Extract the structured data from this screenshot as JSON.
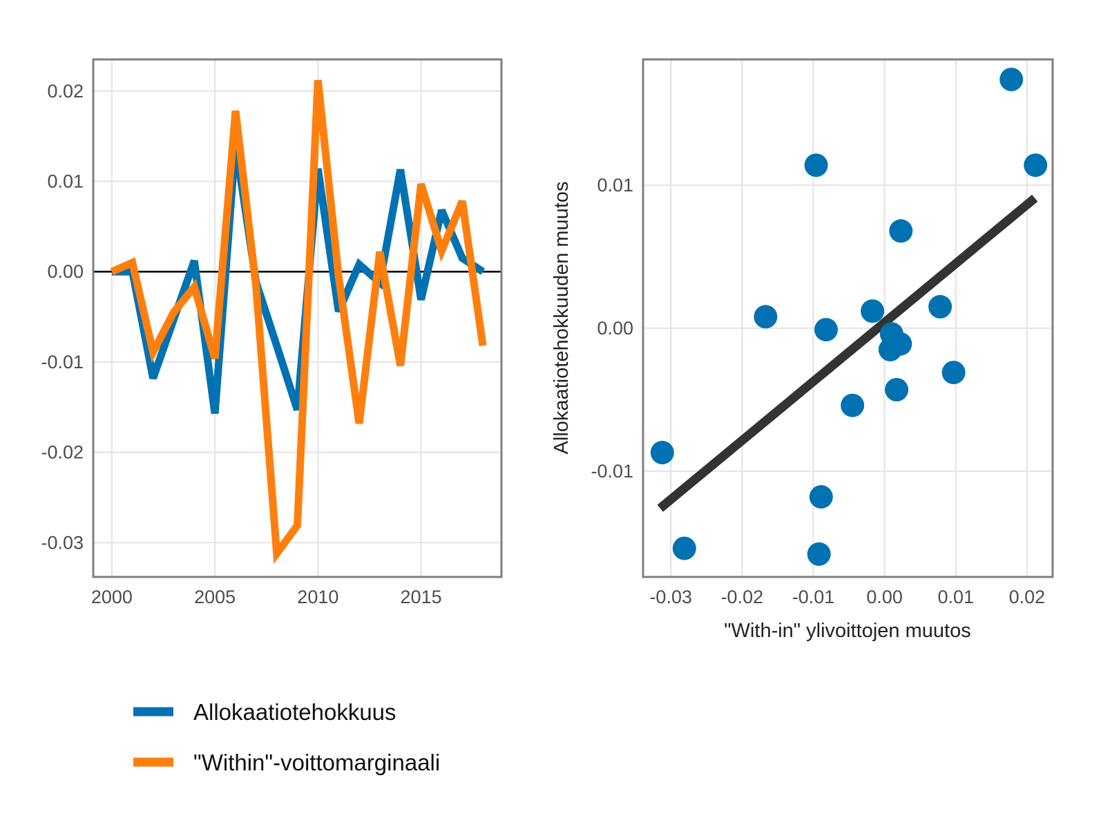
{
  "colors": {
    "allokaatio": "#0072B2",
    "within": "#FF7F0E",
    "fit_line": "#333333",
    "zero_line": "#000000",
    "grid": "#e5e5e5",
    "panel_border": "#7f7f7f"
  },
  "legend": {
    "items": [
      {
        "label": "Allokaatiotehokkuus",
        "color": "#0072B2"
      },
      {
        "label": "\"Within\"-voittomarginaali",
        "color": "#FF7F0E"
      }
    ]
  },
  "chart_data": [
    {
      "type": "line",
      "x": [
        2000,
        2001,
        2002,
        2003,
        2004,
        2005,
        2006,
        2007,
        2008,
        2009,
        2010,
        2011,
        2012,
        2013,
        2014,
        2015,
        2016,
        2017,
        2018
      ],
      "series": [
        {
          "name": "Allokaatiotehokkuus",
          "values": [
            0.0,
            0.0,
            -0.0118,
            -0.0053,
            0.0012,
            -0.0157,
            0.0142,
            -0.0012,
            -0.0082,
            -0.0153,
            0.0114,
            -0.0044,
            0.0008,
            -0.0012,
            0.0113,
            -0.0031,
            0.0068,
            0.0015,
            0.0
          ]
        },
        {
          "name": "\"Within\"-voittomarginaali",
          "values": [
            0.0,
            0.001,
            -0.0089,
            -0.0045,
            -0.0017,
            -0.0096,
            0.0178,
            -0.0017,
            -0.0312,
            -0.0281,
            0.0212,
            -0.0005,
            -0.0168,
            0.0022,
            -0.0104,
            0.0097,
            0.0023,
            0.0078,
            -0.0082
          ]
        }
      ],
      "xticks": [
        2000,
        2005,
        2010,
        2015
      ],
      "yticks": [
        0.02,
        0.01,
        0.0,
        -0.01,
        -0.02,
        -0.03
      ],
      "xtick_labels": [
        "2000",
        "2005",
        "2010",
        "2015"
      ],
      "ytick_labels": [
        "0.02",
        "0.01",
        "0.00",
        "-0.01",
        "-0.02",
        "-0.03"
      ],
      "xlim": [
        1999.1,
        2018.9
      ],
      "ylim": [
        -0.0338,
        0.0235
      ],
      "hline": 0.0,
      "grid": true,
      "xlabel": "",
      "ylabel": "",
      "legend": "bottom"
    },
    {
      "type": "scatter",
      "points": [
        {
          "x": -0.0312,
          "y": -0.0087
        },
        {
          "x": -0.0281,
          "y": -0.0154
        },
        {
          "x": -0.0167,
          "y": 0.0008
        },
        {
          "x": -0.0096,
          "y": 0.0114
        },
        {
          "x": -0.0082,
          "y": -0.0001
        },
        {
          "x": -0.0089,
          "y": -0.0118
        },
        {
          "x": -0.0092,
          "y": -0.0158
        },
        {
          "x": -0.0045,
          "y": -0.0054
        },
        {
          "x": -0.0017,
          "y": 0.0012
        },
        {
          "x": 0.001,
          "y": -0.0004
        },
        {
          "x": 0.0008,
          "y": -0.0015
        },
        {
          "x": 0.0022,
          "y": -0.0011
        },
        {
          "x": 0.0017,
          "y": -0.0043
        },
        {
          "x": 0.0023,
          "y": 0.0068
        },
        {
          "x": 0.0078,
          "y": 0.0015
        },
        {
          "x": 0.0097,
          "y": -0.0031
        },
        {
          "x": 0.0178,
          "y": 0.0174
        },
        {
          "x": 0.0212,
          "y": 0.0114
        }
      ],
      "fit": {
        "x0": -0.0315,
        "y0": -0.0126,
        "x1": 0.0211,
        "y1": 0.0091
      },
      "xticks": [
        -0.03,
        -0.02,
        -0.01,
        0.0,
        0.01,
        0.02
      ],
      "yticks": [
        0.01,
        0.0,
        -0.01
      ],
      "xtick_labels": [
        "-0.03",
        "-0.02",
        "-0.01",
        "0.00",
        "0.01",
        "0.02"
      ],
      "ytick_labels": [
        "0.01",
        "0.00",
        "-0.01"
      ],
      "xlim": [
        -0.0339,
        0.0236
      ],
      "ylim": [
        -0.0174,
        0.0188
      ],
      "grid": true,
      "xlabel": "\"With-in\" ylivoittojen muutos",
      "ylabel": "Allokaatiotehokkuuden muutos"
    }
  ]
}
